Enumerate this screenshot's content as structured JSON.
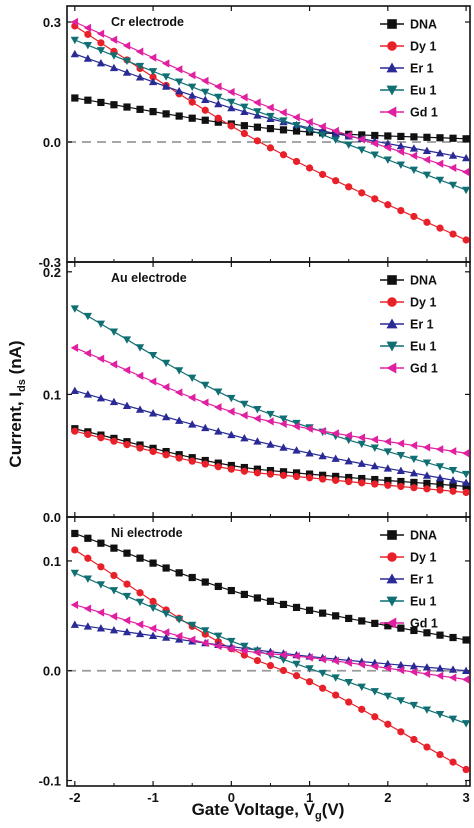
{
  "figure": {
    "xlabel": "Gate Voltage, V",
    "xlabel_sub": "g",
    "xlabel_tail": "(V)",
    "ylabel": "Current, I",
    "ylabel_sub": "ds",
    "ylabel_tail": " (nA)"
  },
  "chart_data": [
    {
      "type": "line",
      "title": "Cr electrode",
      "xlim": [
        -2.1,
        3.05
      ],
      "ylim": [
        -0.3,
        0.34
      ],
      "xticks": [
        -2,
        -1,
        0,
        1,
        2,
        3
      ],
      "xtick_labels": [
        "-2",
        "-1",
        "0",
        "1",
        "2",
        "3"
      ],
      "yticks": [
        -0.3,
        0.0,
        0.3
      ],
      "ytick_labels": [
        "-0.3",
        "0.0",
        "0.3"
      ],
      "zero_line": true,
      "legend_position": "top-right",
      "series": [
        {
          "name": "DNA",
          "color": "#111111",
          "marker": "square",
          "x": [
            -2,
            0,
            1,
            3
          ],
          "y": [
            0.11,
            0.045,
            0.025,
            0.008
          ]
        },
        {
          "name": "Dy 1",
          "color": "#e8202a",
          "marker": "circle",
          "x": [
            -2,
            0,
            1,
            3
          ],
          "y": [
            0.29,
            0.04,
            -0.065,
            -0.245
          ]
        },
        {
          "name": "Er 1",
          "color": "#2a2a96",
          "marker": "triangle-up",
          "x": [
            -2,
            0,
            1,
            3
          ],
          "y": [
            0.22,
            0.085,
            0.035,
            -0.04
          ]
        },
        {
          "name": "Eu 1",
          "color": "#0f6f72",
          "marker": "triangle-down",
          "x": [
            -2,
            0,
            1,
            3
          ],
          "y": [
            0.255,
            0.1,
            0.03,
            -0.12
          ]
        },
        {
          "name": "Gd 1",
          "color": "#e020a0",
          "marker": "triangle-left",
          "x": [
            -2,
            0,
            1,
            3
          ],
          "y": [
            0.3,
            0.125,
            0.05,
            -0.075
          ]
        }
      ]
    },
    {
      "type": "line",
      "title": "Au electrode",
      "xlim": [
        -2.1,
        3.05
      ],
      "ylim": [
        0.0,
        0.208
      ],
      "xticks": [
        -2,
        -1,
        0,
        1,
        2,
        3
      ],
      "xtick_labels": [
        "-2",
        "-1",
        "0",
        "1",
        "2",
        "3"
      ],
      "yticks": [
        0.0,
        0.1,
        0.2
      ],
      "ytick_labels": [
        "0.0",
        "0.1",
        "0.2"
      ],
      "zero_line": false,
      "legend_position": "top-right",
      "series": [
        {
          "name": "DNA",
          "color": "#111111",
          "marker": "square",
          "x": [
            -2,
            0,
            1,
            3
          ],
          "y": [
            0.072,
            0.042,
            0.035,
            0.025
          ]
        },
        {
          "name": "Dy 1",
          "color": "#e8202a",
          "marker": "circle",
          "x": [
            -2,
            0,
            1,
            3
          ],
          "y": [
            0.07,
            0.039,
            0.032,
            0.02
          ]
        },
        {
          "name": "Er 1",
          "color": "#2a2a96",
          "marker": "triangle-up",
          "x": [
            -2,
            0,
            1,
            3
          ],
          "y": [
            0.103,
            0.067,
            0.052,
            0.028
          ]
        },
        {
          "name": "Eu 1",
          "color": "#0f6f72",
          "marker": "triangle-down",
          "x": [
            -2,
            0,
            1,
            3
          ],
          "y": [
            0.17,
            0.097,
            0.073,
            0.035
          ]
        },
        {
          "name": "Gd 1",
          "color": "#e020a0",
          "marker": "triangle-left",
          "x": [
            -2,
            0,
            1,
            3
          ],
          "y": [
            0.138,
            0.086,
            0.072,
            0.052
          ]
        }
      ]
    },
    {
      "type": "line",
      "title": "Ni electrode",
      "xlim": [
        -2.1,
        3.05
      ],
      "ylim": [
        -0.105,
        0.14
      ],
      "xticks": [
        -2,
        -1,
        0,
        1,
        2,
        3
      ],
      "xtick_labels": [
        "-2",
        "-1",
        "0",
        "1",
        "2",
        "3"
      ],
      "yticks": [
        -0.1,
        0.0,
        0.1
      ],
      "ytick_labels": [
        "-0.1",
        "0.0",
        "0.1"
      ],
      "zero_line": true,
      "legend_position": "top-right",
      "series": [
        {
          "name": "DNA",
          "color": "#111111",
          "marker": "square",
          "x": [
            -2,
            0,
            1,
            3
          ],
          "y": [
            0.125,
            0.073,
            0.055,
            0.028
          ]
        },
        {
          "name": "Dy 1",
          "color": "#e8202a",
          "marker": "circle",
          "x": [
            -2,
            0,
            1,
            3
          ],
          "y": [
            0.11,
            0.02,
            -0.01,
            -0.09
          ]
        },
        {
          "name": "Er 1",
          "color": "#2a2a96",
          "marker": "triangle-up",
          "x": [
            -2,
            0,
            1,
            3
          ],
          "y": [
            0.042,
            0.022,
            0.013,
            0.0
          ]
        },
        {
          "name": "Eu 1",
          "color": "#0f6f72",
          "marker": "triangle-down",
          "x": [
            -2,
            0,
            1,
            3
          ],
          "y": [
            0.089,
            0.027,
            0.002,
            -0.048
          ]
        },
        {
          "name": "Gd 1",
          "color": "#e020a0",
          "marker": "triangle-left",
          "x": [
            -2,
            0,
            1,
            3
          ],
          "y": [
            0.06,
            0.02,
            0.012,
            -0.008
          ]
        }
      ]
    }
  ]
}
